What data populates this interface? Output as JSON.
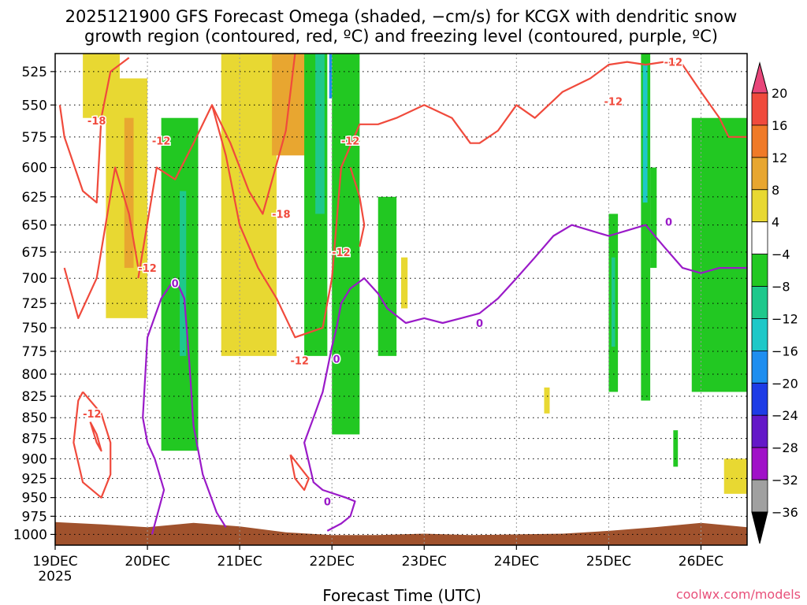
{
  "title_lines": [
    "2025121900 GFS Forecast Omega (shaded, −cm/s) for KCGX with dendritic snow",
    "growth region (contoured, red, ºC) and freezing level (contoured, purple, ºC)"
  ],
  "credit": "coolwx.com/models",
  "chart_data": {
    "type": "heatmap",
    "xlabel": "Forecast Time (UTC)",
    "x_ticks": [
      "19DEC",
      "20DEC",
      "21DEC",
      "22DEC",
      "23DEC",
      "24DEC",
      "25DEC",
      "26DEC"
    ],
    "x_tick_year": "2025",
    "x_range_days": [
      0,
      7.5
    ],
    "y_ticks": [
      525,
      550,
      575,
      600,
      625,
      650,
      675,
      700,
      725,
      750,
      775,
      800,
      825,
      850,
      875,
      900,
      925,
      950,
      975,
      1000
    ],
    "y_range_hpa": [
      512,
      1015
    ],
    "grid": true,
    "colorbar": {
      "tick_labels": [
        "20",
        "16",
        "12",
        "8",
        "4",
        "−4",
        "−8",
        "−12",
        "−16",
        "−20",
        "−24",
        "−28",
        "−32",
        "−36"
      ],
      "colors": [
        "#e8467a",
        "#f04a3c",
        "#f07a28",
        "#e8a630",
        "#e8d832",
        "#ffffff",
        "#22c822",
        "#1ec88c",
        "#1ec8c8",
        "#1e8ef0",
        "#1e3ce6",
        "#6418c8",
        "#a010c8",
        "#a0a0a0",
        "#000000"
      ]
    },
    "terrain_color": "#a0522d",
    "surface_pressure": [
      {
        "day": 0.0,
        "hpa": 983
      },
      {
        "day": 0.5,
        "hpa": 986
      },
      {
        "day": 1.0,
        "hpa": 990
      },
      {
        "day": 1.5,
        "hpa": 984
      },
      {
        "day": 2.0,
        "hpa": 989
      },
      {
        "day": 2.5,
        "hpa": 997
      },
      {
        "day": 3.0,
        "hpa": 1001
      },
      {
        "day": 3.5,
        "hpa": 1001
      },
      {
        "day": 4.0,
        "hpa": 999
      },
      {
        "day": 4.5,
        "hpa": 1001
      },
      {
        "day": 5.0,
        "hpa": 1000
      },
      {
        "day": 5.5,
        "hpa": 999
      },
      {
        "day": 6.0,
        "hpa": 995
      },
      {
        "day": 6.5,
        "hpa": 990
      },
      {
        "day": 7.0,
        "hpa": 984
      },
      {
        "day": 7.5,
        "hpa": 990
      }
    ],
    "omega_patches": [
      {
        "value": 4,
        "day_start": 0.3,
        "day_end": 0.7,
        "hpa_top": 512,
        "hpa_bottom": 560
      },
      {
        "value": 4,
        "day_start": 0.55,
        "day_end": 1.0,
        "hpa_top": 530,
        "hpa_bottom": 740
      },
      {
        "value": 8,
        "day_start": 0.75,
        "day_end": 0.85,
        "hpa_top": 560,
        "hpa_bottom": 690
      },
      {
        "value": -4,
        "day_start": 1.15,
        "day_end": 1.55,
        "hpa_top": 560,
        "hpa_bottom": 890
      },
      {
        "value": -8,
        "day_start": 1.35,
        "day_end": 1.42,
        "hpa_top": 620,
        "hpa_bottom": 780
      },
      {
        "value": 4,
        "day_start": 1.8,
        "day_end": 2.4,
        "hpa_top": 512,
        "hpa_bottom": 780
      },
      {
        "value": 8,
        "day_start": 2.35,
        "day_end": 2.75,
        "hpa_top": 512,
        "hpa_bottom": 590
      },
      {
        "value": -4,
        "day_start": 2.7,
        "day_end": 2.95,
        "hpa_top": 512,
        "hpa_bottom": 780
      },
      {
        "value": -8,
        "day_start": 2.82,
        "day_end": 2.92,
        "hpa_top": 512,
        "hpa_bottom": 640
      },
      {
        "value": -16,
        "day_start": 2.97,
        "day_end": 3.02,
        "hpa_top": 512,
        "hpa_bottom": 545
      },
      {
        "value": -4,
        "day_start": 3.0,
        "day_end": 3.3,
        "hpa_top": 512,
        "hpa_bottom": 870
      },
      {
        "value": -4,
        "day_start": 3.5,
        "day_end": 3.7,
        "hpa_top": 625,
        "hpa_bottom": 780
      },
      {
        "value": 4,
        "day_start": 3.75,
        "day_end": 3.82,
        "hpa_top": 680,
        "hpa_bottom": 730
      },
      {
        "value": 4,
        "day_start": 5.3,
        "day_end": 5.36,
        "hpa_top": 815,
        "hpa_bottom": 845
      },
      {
        "value": -4,
        "day_start": 6.0,
        "day_end": 6.1,
        "hpa_top": 640,
        "hpa_bottom": 820
      },
      {
        "value": -8,
        "day_start": 6.03,
        "day_end": 6.07,
        "hpa_top": 680,
        "hpa_bottom": 770
      },
      {
        "value": -4,
        "day_start": 6.35,
        "day_end": 6.45,
        "hpa_top": 512,
        "hpa_bottom": 830
      },
      {
        "value": -12,
        "day_start": 6.37,
        "day_end": 6.42,
        "hpa_top": 520,
        "hpa_bottom": 630
      },
      {
        "value": -4,
        "day_start": 6.45,
        "day_end": 6.52,
        "hpa_top": 600,
        "hpa_bottom": 690
      },
      {
        "value": -4,
        "day_start": 6.7,
        "day_end": 6.75,
        "hpa_top": 865,
        "hpa_bottom": 910
      },
      {
        "value": -4,
        "day_start": 6.9,
        "day_end": 7.5,
        "hpa_top": 560,
        "hpa_bottom": 820
      },
      {
        "value": 4,
        "day_start": 7.25,
        "day_end": 7.5,
        "hpa_top": 900,
        "hpa_bottom": 945
      }
    ],
    "red_contours": [
      {
        "label": "-18",
        "points": [
          [
            0.05,
            550
          ],
          [
            0.1,
            575
          ],
          [
            0.3,
            620
          ],
          [
            0.45,
            630
          ],
          [
            0.5,
            560
          ],
          [
            0.6,
            525
          ],
          [
            0.7,
            520
          ],
          [
            0.8,
            515
          ]
        ]
      },
      {
        "label": "-12",
        "points": [
          [
            0.1,
            690
          ],
          [
            0.25,
            740
          ],
          [
            0.45,
            700
          ],
          [
            0.65,
            600
          ],
          [
            0.8,
            640
          ],
          [
            0.9,
            690
          ]
        ]
      },
      {
        "label": "-12",
        "points": [
          [
            0.9,
            700
          ],
          [
            1.1,
            600
          ],
          [
            1.3,
            610
          ],
          [
            1.5,
            580
          ],
          [
            1.7,
            550
          ],
          [
            1.85,
            590
          ],
          [
            2.0,
            650
          ],
          [
            2.2,
            690
          ],
          [
            2.4,
            720
          ],
          [
            2.6,
            760
          ],
          [
            2.9,
            750
          ],
          [
            3.0,
            700
          ],
          [
            3.1,
            600
          ],
          [
            3.3,
            565
          ],
          [
            3.5,
            565
          ],
          [
            3.7,
            560
          ],
          [
            4.0,
            550
          ],
          [
            4.3,
            560
          ],
          [
            4.5,
            580
          ],
          [
            4.6,
            580
          ],
          [
            4.8,
            570
          ],
          [
            5.0,
            550
          ],
          [
            5.2,
            560
          ],
          [
            5.5,
            540
          ],
          [
            5.8,
            530
          ],
          [
            6.0,
            520
          ],
          [
            6.2,
            518
          ],
          [
            6.4,
            520
          ],
          [
            6.6,
            518
          ],
          [
            6.8,
            520
          ],
          [
            7.0,
            540
          ],
          [
            7.2,
            560
          ],
          [
            7.3,
            575
          ],
          [
            7.5,
            575
          ]
        ]
      },
      {
        "label": "-18",
        "points": [
          [
            1.7,
            550
          ],
          [
            1.9,
            580
          ],
          [
            2.1,
            620
          ],
          [
            2.25,
            640
          ],
          [
            2.5,
            570
          ],
          [
            2.6,
            512
          ]
        ]
      },
      {
        "label": "-12",
        "points": [
          [
            3.2,
            600
          ],
          [
            3.3,
            625
          ],
          [
            3.35,
            650
          ],
          [
            3.3,
            670
          ]
        ]
      },
      {
        "label": "-12",
        "points": [
          [
            0.3,
            820
          ],
          [
            0.5,
            845
          ],
          [
            0.6,
            880
          ],
          [
            0.6,
            920
          ],
          [
            0.5,
            950
          ],
          [
            0.3,
            930
          ],
          [
            0.2,
            880
          ],
          [
            0.25,
            830
          ],
          [
            0.3,
            820
          ]
        ]
      },
      {
        "label": "",
        "points": [
          [
            0.38,
            855
          ],
          [
            0.45,
            870
          ],
          [
            0.5,
            890
          ],
          [
            0.45,
            880
          ],
          [
            0.38,
            855
          ]
        ]
      },
      {
        "label": "",
        "points": [
          [
            2.55,
            895
          ],
          [
            2.65,
            910
          ],
          [
            2.75,
            925
          ],
          [
            2.7,
            940
          ],
          [
            2.6,
            925
          ],
          [
            2.55,
            895
          ]
        ]
      }
    ],
    "purple_contours": [
      {
        "label": "0",
        "points": [
          [
            1.05,
            1000
          ],
          [
            1.18,
            940
          ],
          [
            1.08,
            900
          ],
          [
            1.0,
            880
          ],
          [
            0.95,
            850
          ],
          [
            1.0,
            760
          ],
          [
            1.15,
            720
          ],
          [
            1.3,
            700
          ],
          [
            1.4,
            720
          ],
          [
            1.45,
            780
          ],
          [
            1.5,
            860
          ],
          [
            1.6,
            920
          ],
          [
            1.75,
            970
          ],
          [
            1.85,
            990
          ]
        ]
      },
      {
        "label": "0",
        "points": [
          [
            2.95,
            995
          ],
          [
            3.1,
            985
          ],
          [
            3.2,
            975
          ],
          [
            3.25,
            955
          ],
          [
            3.15,
            950
          ],
          [
            2.9,
            940
          ],
          [
            2.8,
            930
          ],
          [
            2.7,
            880
          ],
          [
            2.8,
            850
          ],
          [
            2.9,
            820
          ],
          [
            3.0,
            770
          ],
          [
            3.05,
            750
          ],
          [
            3.1,
            725
          ],
          [
            3.2,
            710
          ],
          [
            3.35,
            700
          ],
          [
            3.5,
            715
          ],
          [
            3.6,
            730
          ],
          [
            3.8,
            745
          ],
          [
            4.0,
            740
          ],
          [
            4.2,
            745
          ],
          [
            4.4,
            740
          ],
          [
            4.6,
            735
          ],
          [
            4.8,
            720
          ],
          [
            5.0,
            700
          ],
          [
            5.2,
            680
          ],
          [
            5.4,
            660
          ],
          [
            5.6,
            650
          ],
          [
            5.8,
            655
          ],
          [
            6.0,
            660
          ],
          [
            6.2,
            655
          ],
          [
            6.4,
            650
          ],
          [
            6.6,
            670
          ],
          [
            6.8,
            690
          ],
          [
            7.0,
            695
          ],
          [
            7.2,
            690
          ],
          [
            7.5,
            690
          ]
        ]
      }
    ],
    "contour_labels": [
      {
        "text": "-18",
        "color": "red",
        "day": 0.45,
        "hpa": 562
      },
      {
        "text": "-12",
        "color": "red",
        "day": 1.15,
        "hpa": 578
      },
      {
        "text": "-12",
        "color": "red",
        "day": 1.0,
        "hpa": 690
      },
      {
        "text": "-18",
        "color": "red",
        "day": 2.45,
        "hpa": 640
      },
      {
        "text": "-12",
        "color": "red",
        "day": 3.1,
        "hpa": 675
      },
      {
        "text": "-12",
        "color": "red",
        "day": 2.65,
        "hpa": 785
      },
      {
        "text": "-12",
        "color": "red",
        "day": 0.4,
        "hpa": 845
      },
      {
        "text": "-12",
        "color": "red",
        "day": 3.2,
        "hpa": 578
      },
      {
        "text": "-12",
        "color": "red",
        "day": 6.05,
        "hpa": 547
      },
      {
        "text": "-12",
        "color": "red",
        "day": 6.7,
        "hpa": 518
      },
      {
        "text": "0",
        "color": "purple",
        "day": 1.3,
        "hpa": 705
      },
      {
        "text": "0",
        "color": "purple",
        "day": 3.05,
        "hpa": 783
      },
      {
        "text": "0",
        "color": "purple",
        "day": 2.95,
        "hpa": 955
      },
      {
        "text": "0",
        "color": "purple",
        "day": 4.6,
        "hpa": 745
      },
      {
        "text": "0",
        "color": "purple",
        "day": 6.65,
        "hpa": 647
      }
    ]
  }
}
